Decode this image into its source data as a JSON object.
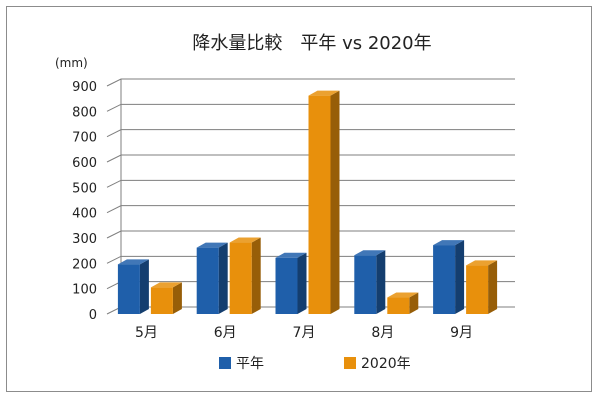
{
  "chart_data": {
    "type": "bar",
    "title": "降水量比較　平年 vs 2020年",
    "ylabel": "(mm)",
    "xlabel": "",
    "categories": [
      "5月",
      "6月",
      "7月",
      "8月",
      "9月"
    ],
    "series": [
      {
        "name": "平年",
        "values": [
          196,
          262,
          222,
          232,
          272
        ],
        "color": "#1f5faa"
      },
      {
        "name": "2020年",
        "values": [
          105,
          282,
          862,
          65,
          192
        ],
        "color": "#e8900c"
      }
    ],
    "ylim": [
      0,
      900
    ],
    "yticks": [
      0,
      100,
      200,
      300,
      400,
      500,
      600,
      700,
      800,
      900
    ],
    "grid": true,
    "legend_position": "bottom",
    "style": "3d-clustered"
  }
}
